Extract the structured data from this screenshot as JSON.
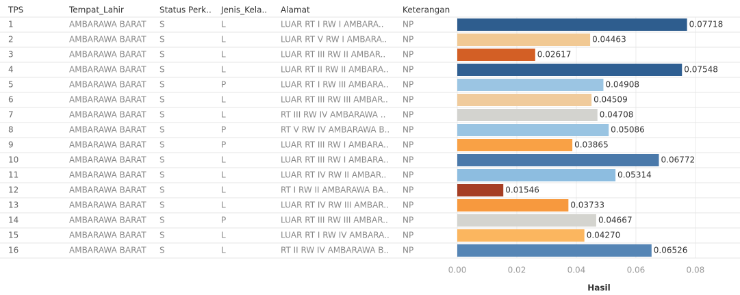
{
  "chart_data": {
    "type": "bar",
    "headers": [
      "TPS",
      "Tempat_Lahir",
      "Status Perk..",
      "Jenis_Kela..",
      "Alamat",
      "Keterangan"
    ],
    "categories": [
      "1",
      "2",
      "3",
      "4",
      "5",
      "6",
      "7",
      "8",
      "9",
      "10",
      "11",
      "12",
      "13",
      "14",
      "15",
      "16"
    ],
    "rows": [
      [
        "AMBARAWA BARAT",
        "S",
        "L",
        "LUAR RT I RW I AMBARA..",
        "NP"
      ],
      [
        "AMBARAWA BARAT",
        "S",
        "L",
        "LUAR RT V RW I AMBARA..",
        "NP"
      ],
      [
        "AMBARAWA BARAT",
        "S",
        "L",
        "LUAR RT III RW II AMBAR..",
        "NP"
      ],
      [
        "AMBARAWA BARAT",
        "S",
        "L",
        "LUAR RT II RW II AMBARA..",
        "NP"
      ],
      [
        "AMBARAWA BARAT",
        "S",
        "P",
        "LUAR RT I RW III AMBARA..",
        "NP"
      ],
      [
        "AMBARAWA BARAT",
        "S",
        "L",
        "LUAR RT III RW III AMBAR..",
        "NP"
      ],
      [
        "AMBARAWA BARAT",
        "S",
        "L",
        "RT III RW IV AMBARAWA ..",
        "NP"
      ],
      [
        "AMBARAWA BARAT",
        "S",
        "P",
        "RT V RW IV AMBARAWA B..",
        "NP"
      ],
      [
        "AMBARAWA BARAT",
        "S",
        "P",
        "LUAR RT III RW I AMBARA..",
        "NP"
      ],
      [
        "AMBARAWA BARAT",
        "S",
        "L",
        "LUAR RT III RW I AMBARA..",
        "NP"
      ],
      [
        "AMBARAWA BARAT",
        "S",
        "L",
        "LUAR RT IV RW II AMBAR..",
        "NP"
      ],
      [
        "AMBARAWA BARAT",
        "S",
        "L",
        "RT I RW II AMBARAWA BA..",
        "NP"
      ],
      [
        "AMBARAWA BARAT",
        "S",
        "L",
        "LUAR RT IV RW III AMBAR..",
        "NP"
      ],
      [
        "AMBARAWA BARAT",
        "S",
        "P",
        "LUAR RT III RW III AMBAR..",
        "NP"
      ],
      [
        "AMBARAWA BARAT",
        "S",
        "L",
        "LUAR RT I RW IV AMBARA..",
        "NP"
      ],
      [
        "AMBARAWA BARAT",
        "S",
        "L",
        "RT II RW IV AMBARAWA B..",
        "NP"
      ]
    ],
    "values": [
      0.07718,
      0.04463,
      0.02617,
      0.07548,
      0.04908,
      0.04509,
      0.04708,
      0.05086,
      0.03865,
      0.06772,
      0.05314,
      0.01546,
      0.03733,
      0.04667,
      0.0427,
      0.06526
    ],
    "value_labels": [
      "0.07718",
      "0.04463",
      "0.02617",
      "0.07548",
      "0.04908",
      "0.04509",
      "0.04708",
      "0.05086",
      "0.03865",
      "0.06772",
      "0.05314",
      "0.01546",
      "0.03733",
      "0.04667",
      "0.04270",
      "0.06526"
    ],
    "colors": [
      "#2e5d8e",
      "#f1c994",
      "#d35f25",
      "#2f5f92",
      "#9bc5e3",
      "#f0cb9c",
      "#d3d3cf",
      "#99c4e2",
      "#f9a145",
      "#4a79aa",
      "#8dbde0",
      "#a63e24",
      "#f7993e",
      "#d4d4cf",
      "#fbb65f",
      "#5585b5"
    ],
    "xlim": [
      0,
      0.086
    ],
    "xticks": [
      {
        "value": 0,
        "label": "0.00"
      },
      {
        "value": 0.02,
        "label": "0.02"
      },
      {
        "value": 0.04,
        "label": "0.04"
      },
      {
        "value": 0.06,
        "label": "0.06"
      },
      {
        "value": 0.08,
        "label": "0.08"
      }
    ],
    "xlabel": "Hasil",
    "grid": true
  }
}
